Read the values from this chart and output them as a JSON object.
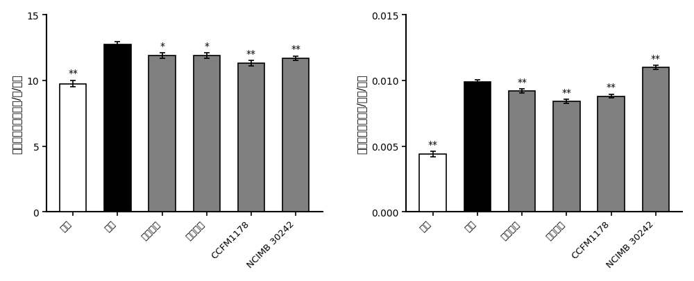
{
  "left": {
    "categories": [
      "空白",
      "造模",
      "辛伐他汀",
      "二甲双胍",
      "CCFM1178",
      "NCIMB 30242"
    ],
    "values": [
      9.75,
      12.75,
      11.9,
      11.9,
      11.3,
      11.7
    ],
    "errors": [
      0.25,
      0.2,
      0.2,
      0.2,
      0.2,
      0.15
    ],
    "colors": [
      "#ffffff",
      "#000000",
      "#808080",
      "#808080",
      "#808080",
      "#808080"
    ],
    "edge_colors": [
      "#000000",
      "#000000",
      "#000000",
      "#000000",
      "#000000",
      "#000000"
    ],
    "significance": [
      "**",
      "",
      "*",
      "*",
      "**",
      "**"
    ],
    "ylabel": "每日饮食摄入（千卡/天/只）",
    "ylim": [
      0,
      15
    ],
    "yticks": [
      0,
      5,
      10,
      15
    ]
  },
  "right": {
    "categories": [
      "空白",
      "造模",
      "辛伐他汀",
      "二甲双胍",
      "CCFM1178",
      "NCIMB 30242"
    ],
    "values": [
      0.0044,
      0.0099,
      0.0092,
      0.0084,
      0.0088,
      0.011
    ],
    "errors": [
      0.0002,
      0.00015,
      0.00015,
      0.00015,
      0.00015,
      0.00015
    ],
    "colors": [
      "#ffffff",
      "#000000",
      "#808080",
      "#808080",
      "#808080",
      "#808080"
    ],
    "edge_colors": [
      "#000000",
      "#000000",
      "#000000",
      "#000000",
      "#000000",
      "#000000"
    ],
    "significance": [
      "**",
      "",
      "**",
      "**",
      "**",
      "**"
    ],
    "ylabel": "能量转化效率（克/千卡/只）",
    "ylim": [
      0,
      0.015
    ],
    "yticks": [
      0.0,
      0.005,
      0.01,
      0.015
    ]
  },
  "bar_width": 0.6,
  "capsize": 3,
  "sig_fontsize": 10,
  "tick_fontsize": 9.5,
  "label_fontsize": 10.5,
  "background_color": "#ffffff",
  "bar_edge_width": 1.2
}
